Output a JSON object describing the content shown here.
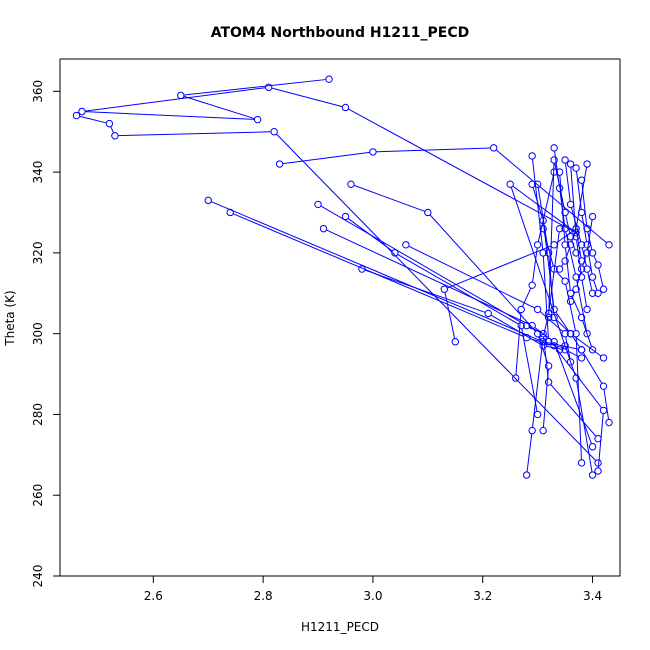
{
  "chart_data": {
    "type": "line",
    "title": "ATOM4 Northbound H1211_PECD",
    "xlabel": "H1211_PECD",
    "ylabel": "Theta (K)",
    "xlim": [
      2.43,
      3.45
    ],
    "ylim": [
      240,
      368
    ],
    "xticks": [
      2.6,
      2.8,
      3.0,
      3.2,
      3.4
    ],
    "xtick_labels": [
      "2.6",
      "2.8",
      "3.0",
      "3.2",
      "3.4"
    ],
    "yticks": [
      240,
      260,
      280,
      300,
      320,
      340,
      360
    ],
    "ytick_labels": [
      "240",
      "260",
      "280",
      "300",
      "320",
      "340",
      "360"
    ],
    "grid": false,
    "line_color": "#0000ff",
    "marker": "open-circle",
    "series": [
      {
        "points": [
          [
            2.92,
            363
          ],
          [
            2.65,
            359
          ],
          [
            2.79,
            353
          ],
          [
            2.47,
            355
          ],
          [
            2.81,
            361
          ],
          [
            2.95,
            356
          ],
          [
            3.37,
            325
          ],
          [
            3.25,
            337
          ],
          [
            3.37,
            289
          ],
          [
            3.4,
            265
          ]
        ]
      },
      {
        "points": [
          [
            2.46,
            354
          ],
          [
            2.52,
            352
          ],
          [
            2.53,
            349
          ],
          [
            2.82,
            350
          ],
          [
            3.41,
            268
          ]
        ]
      },
      {
        "points": [
          [
            2.83,
            342
          ],
          [
            3.0,
            345
          ],
          [
            3.22,
            346
          ],
          [
            3.43,
            322
          ]
        ]
      },
      {
        "points": [
          [
            3.29,
            337
          ],
          [
            3.31,
            328
          ],
          [
            3.33,
            306
          ],
          [
            3.36,
            300
          ],
          [
            3.42,
            294
          ]
        ]
      },
      {
        "points": [
          [
            2.7,
            333
          ],
          [
            3.31,
            298
          ],
          [
            3.38,
            296
          ],
          [
            3.42,
            287
          ],
          [
            3.43,
            278
          ]
        ]
      },
      {
        "points": [
          [
            2.74,
            330
          ],
          [
            3.28,
            299
          ],
          [
            3.33,
            297
          ],
          [
            3.42,
            281
          ],
          [
            3.41,
            266
          ]
        ]
      },
      {
        "points": [
          [
            2.9,
            332
          ],
          [
            3.28,
            302
          ],
          [
            3.31,
            300
          ],
          [
            3.32,
            288
          ],
          [
            3.41,
            274
          ]
        ]
      },
      {
        "points": [
          [
            2.91,
            326
          ],
          [
            3.29,
            302
          ],
          [
            3.33,
            298
          ],
          [
            3.4,
            272
          ]
        ]
      },
      {
        "points": [
          [
            2.96,
            337
          ],
          [
            3.1,
            330
          ],
          [
            3.3,
            300
          ],
          [
            3.32,
            292
          ],
          [
            3.31,
            276
          ]
        ]
      },
      {
        "points": [
          [
            2.95,
            329
          ],
          [
            3.04,
            320
          ],
          [
            3.27,
            302
          ],
          [
            3.3,
            280
          ]
        ]
      },
      {
        "points": [
          [
            2.98,
            316
          ],
          [
            3.21,
            305
          ],
          [
            3.31,
            297
          ],
          [
            3.35,
            296
          ],
          [
            3.38,
            294
          ]
        ]
      },
      {
        "points": [
          [
            3.06,
            322
          ],
          [
            3.3,
            306
          ],
          [
            3.35,
            300
          ],
          [
            3.36,
            293
          ]
        ]
      },
      {
        "points": [
          [
            3.15,
            298
          ],
          [
            3.13,
            311
          ],
          [
            3.33,
            322
          ],
          [
            3.37,
            326
          ],
          [
            3.38,
            318
          ]
        ]
      },
      {
        "points": [
          [
            3.26,
            289
          ],
          [
            3.27,
            306
          ],
          [
            3.29,
            312
          ],
          [
            3.3,
            322
          ],
          [
            3.33,
            340
          ]
        ]
      },
      {
        "points": [
          [
            3.28,
            265
          ],
          [
            3.29,
            276
          ],
          [
            3.31,
            299
          ],
          [
            3.32,
            305
          ],
          [
            3.34,
            326
          ]
        ]
      },
      {
        "points": [
          [
            3.29,
            344
          ],
          [
            3.31,
            320
          ],
          [
            3.32,
            298
          ],
          [
            3.34,
            296
          ],
          [
            3.35,
            297
          ]
        ]
      },
      {
        "points": [
          [
            3.3,
            337
          ],
          [
            3.32,
            320
          ],
          [
            3.33,
            304
          ],
          [
            3.36,
            300
          ],
          [
            3.38,
            296
          ]
        ]
      },
      {
        "points": [
          [
            3.31,
            326
          ],
          [
            3.33,
            316
          ],
          [
            3.35,
            313
          ],
          [
            3.37,
            300
          ],
          [
            3.38,
            268
          ]
        ]
      },
      {
        "points": [
          [
            3.32,
            304
          ],
          [
            3.33,
            343
          ],
          [
            3.35,
            330
          ],
          [
            3.36,
            324
          ],
          [
            3.37,
            320
          ]
        ]
      },
      {
        "points": [
          [
            3.33,
            346
          ],
          [
            3.34,
            336
          ],
          [
            3.35,
            326
          ],
          [
            3.37,
            314
          ],
          [
            3.39,
            300
          ]
        ]
      },
      {
        "points": [
          [
            3.34,
            340
          ],
          [
            3.35,
            322
          ],
          [
            3.36,
            310
          ],
          [
            3.38,
            304
          ],
          [
            3.4,
            296
          ]
        ]
      },
      {
        "points": [
          [
            3.35,
            343
          ],
          [
            3.36,
            332
          ],
          [
            3.38,
            322
          ],
          [
            3.39,
            316
          ],
          [
            3.4,
            310
          ]
        ]
      },
      {
        "points": [
          [
            3.36,
            342
          ],
          [
            3.37,
            324
          ],
          [
            3.38,
            314
          ],
          [
            3.39,
            306
          ]
        ]
      },
      {
        "points": [
          [
            3.37,
            341
          ],
          [
            3.38,
            330
          ],
          [
            3.39,
            322
          ],
          [
            3.4,
            314
          ],
          [
            3.41,
            310
          ]
        ]
      },
      {
        "points": [
          [
            3.38,
            338
          ],
          [
            3.39,
            326
          ],
          [
            3.4,
            320
          ],
          [
            3.41,
            317
          ],
          [
            3.42,
            311
          ]
        ]
      },
      {
        "points": [
          [
            3.39,
            342
          ],
          [
            3.37,
            326
          ],
          [
            3.36,
            322
          ],
          [
            3.35,
            318
          ],
          [
            3.34,
            316
          ]
        ]
      },
      {
        "points": [
          [
            3.4,
            329
          ],
          [
            3.39,
            320
          ],
          [
            3.38,
            316
          ],
          [
            3.37,
            311
          ],
          [
            3.36,
            308
          ]
        ]
      }
    ]
  }
}
